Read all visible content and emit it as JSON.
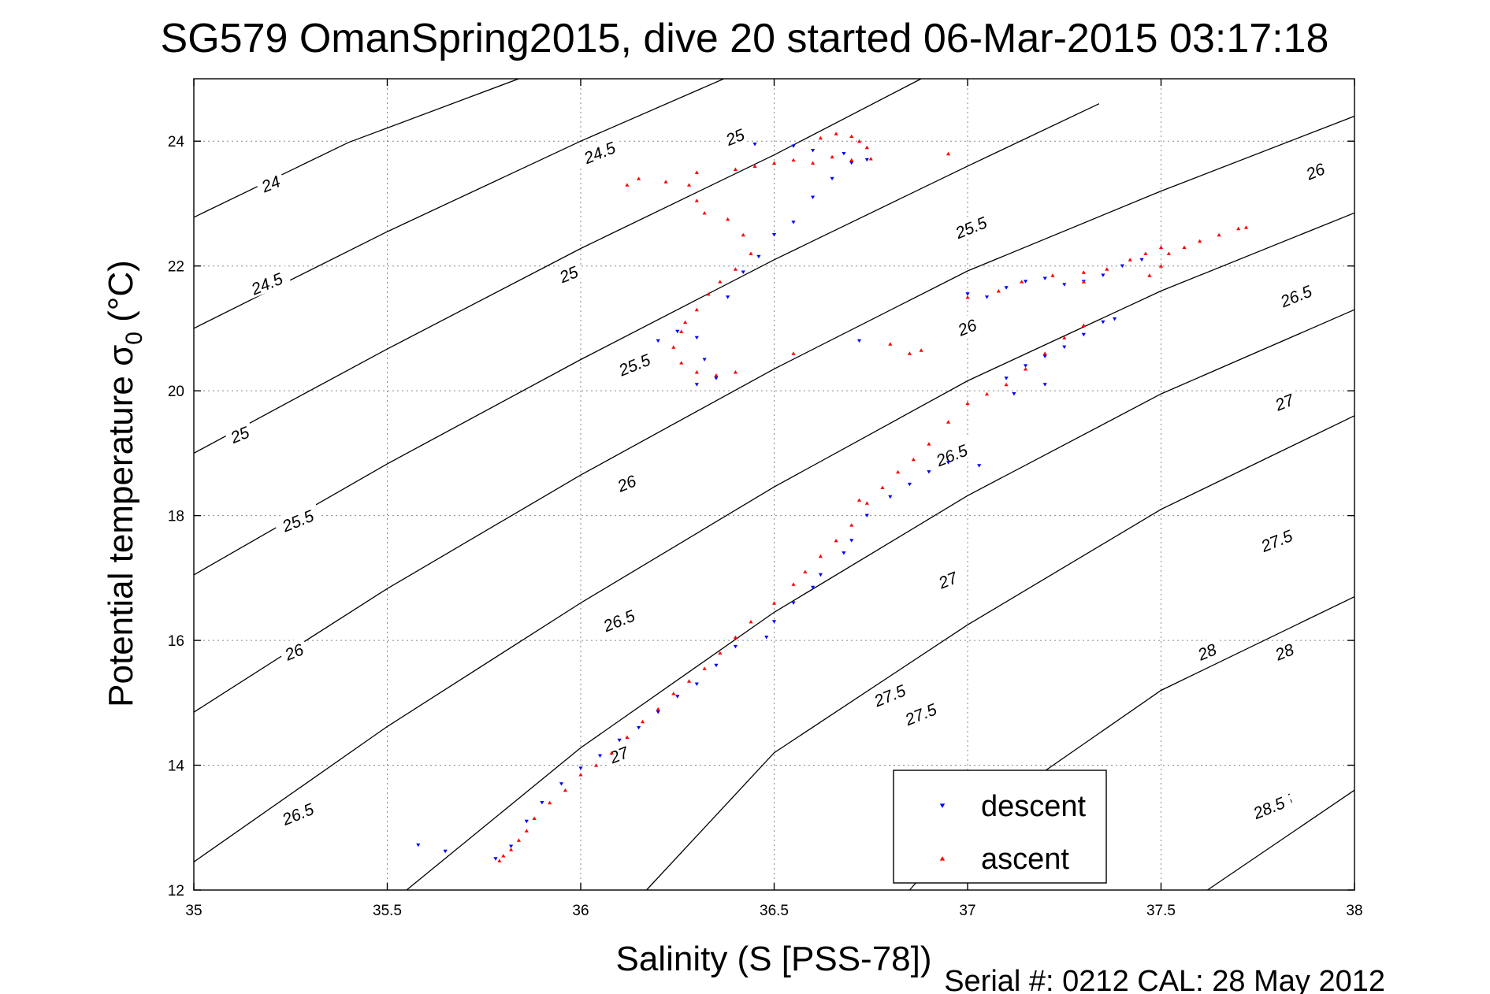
{
  "chart_data": {
    "type": "scatter",
    "title": "SG579 OmanSpring2015, dive 20 started 06-Mar-2015 03:17:18",
    "xlabel": "Salinity (S [PSS-78])",
    "ylabel": "Potential temperature σ",
    "ylabel_subscript": "0",
    "ylabel_unit": " (°C)",
    "footer": "Serial #: 0212  CAL: 28 May 2012",
    "xlim": [
      35,
      38
    ],
    "ylim": [
      12,
      25
    ],
    "xticks": [
      35,
      35.5,
      36,
      36.5,
      37,
      37.5,
      38
    ],
    "xtick_labels": [
      "35",
      "35.5",
      "36",
      "36.5",
      "37",
      "37.5",
      "38"
    ],
    "yticks": [
      12,
      14,
      16,
      18,
      20,
      22,
      24
    ],
    "ytick_labels": [
      "12",
      "14",
      "16",
      "18",
      "20",
      "22",
      "24"
    ],
    "grid": true,
    "legend_position": "bottom-right",
    "series": [
      {
        "name": "descent",
        "color": "#0000ff",
        "marker": "triangle-down",
        "points": [
          [
            35.58,
            12.72
          ],
          [
            35.65,
            12.62
          ],
          [
            35.78,
            12.5
          ],
          [
            35.82,
            12.7
          ],
          [
            35.86,
            13.1
          ],
          [
            35.9,
            13.4
          ],
          [
            35.95,
            13.7
          ],
          [
            36.0,
            13.95
          ],
          [
            36.05,
            14.15
          ],
          [
            36.1,
            14.4
          ],
          [
            36.15,
            14.6
          ],
          [
            36.2,
            14.85
          ],
          [
            36.25,
            15.1
          ],
          [
            36.3,
            15.3
          ],
          [
            36.35,
            15.6
          ],
          [
            36.4,
            15.9
          ],
          [
            36.48,
            16.05
          ],
          [
            36.5,
            16.3
          ],
          [
            36.55,
            16.6
          ],
          [
            36.6,
            16.85
          ],
          [
            36.62,
            17.05
          ],
          [
            36.68,
            17.4
          ],
          [
            36.7,
            17.6
          ],
          [
            36.74,
            18.0
          ],
          [
            36.8,
            18.3
          ],
          [
            36.85,
            18.5
          ],
          [
            36.9,
            18.7
          ],
          [
            36.95,
            18.85
          ],
          [
            37.03,
            18.8
          ],
          [
            36.2,
            20.8
          ],
          [
            36.25,
            20.95
          ],
          [
            36.3,
            20.85
          ],
          [
            36.32,
            20.5
          ],
          [
            36.35,
            20.2
          ],
          [
            36.3,
            20.1
          ],
          [
            36.38,
            21.5
          ],
          [
            36.42,
            21.9
          ],
          [
            36.46,
            22.15
          ],
          [
            36.5,
            22.5
          ],
          [
            36.55,
            22.7
          ],
          [
            36.6,
            23.1
          ],
          [
            36.65,
            23.4
          ],
          [
            36.7,
            23.65
          ],
          [
            36.74,
            23.7
          ],
          [
            36.68,
            23.8
          ],
          [
            36.55,
            23.92
          ],
          [
            36.45,
            23.95
          ],
          [
            36.6,
            23.85
          ],
          [
            37.0,
            21.55
          ],
          [
            37.05,
            21.5
          ],
          [
            37.1,
            21.65
          ],
          [
            37.15,
            21.75
          ],
          [
            37.2,
            21.8
          ],
          [
            37.25,
            21.7
          ],
          [
            37.3,
            21.75
          ],
          [
            37.35,
            21.85
          ],
          [
            37.4,
            22.0
          ],
          [
            37.45,
            22.1
          ],
          [
            37.1,
            20.2
          ],
          [
            37.15,
            20.4
          ],
          [
            37.2,
            20.55
          ],
          [
            37.25,
            20.7
          ],
          [
            37.3,
            20.9
          ],
          [
            37.35,
            21.1
          ],
          [
            37.38,
            21.15
          ],
          [
            37.2,
            20.1
          ],
          [
            37.12,
            19.95
          ],
          [
            36.72,
            20.8
          ]
        ]
      },
      {
        "name": "ascent",
        "color": "#ff0000",
        "marker": "triangle-up",
        "points": [
          [
            35.79,
            12.47
          ],
          [
            35.8,
            12.55
          ],
          [
            35.82,
            12.65
          ],
          [
            35.84,
            12.8
          ],
          [
            35.86,
            12.95
          ],
          [
            35.88,
            13.15
          ],
          [
            35.92,
            13.4
          ],
          [
            35.96,
            13.6
          ],
          [
            36.0,
            13.85
          ],
          [
            36.04,
            14.0
          ],
          [
            36.08,
            14.2
          ],
          [
            36.12,
            14.45
          ],
          [
            36.16,
            14.7
          ],
          [
            36.2,
            14.9
          ],
          [
            36.24,
            15.15
          ],
          [
            36.28,
            15.35
          ],
          [
            36.32,
            15.55
          ],
          [
            36.36,
            15.8
          ],
          [
            36.4,
            16.05
          ],
          [
            36.44,
            16.3
          ],
          [
            36.5,
            16.6
          ],
          [
            36.55,
            16.9
          ],
          [
            36.58,
            17.1
          ],
          [
            36.62,
            17.35
          ],
          [
            36.66,
            17.6
          ],
          [
            36.7,
            17.85
          ],
          [
            36.74,
            18.2
          ],
          [
            36.78,
            18.45
          ],
          [
            36.82,
            18.7
          ],
          [
            36.86,
            18.9
          ],
          [
            36.9,
            19.15
          ],
          [
            36.95,
            19.5
          ],
          [
            37.0,
            19.8
          ],
          [
            37.05,
            19.95
          ],
          [
            37.1,
            20.1
          ],
          [
            37.15,
            20.35
          ],
          [
            37.2,
            20.6
          ],
          [
            37.25,
            20.85
          ],
          [
            37.3,
            21.05
          ],
          [
            36.72,
            18.25
          ],
          [
            36.26,
            20.95
          ],
          [
            36.24,
            20.7
          ],
          [
            36.26,
            20.45
          ],
          [
            36.3,
            20.3
          ],
          [
            36.35,
            20.25
          ],
          [
            36.4,
            20.3
          ],
          [
            36.27,
            21.1
          ],
          [
            36.3,
            21.3
          ],
          [
            36.33,
            21.55
          ],
          [
            36.36,
            21.75
          ],
          [
            36.4,
            21.95
          ],
          [
            36.44,
            22.2
          ],
          [
            36.42,
            22.5
          ],
          [
            36.38,
            22.75
          ],
          [
            36.32,
            22.85
          ],
          [
            36.3,
            23.05
          ],
          [
            36.28,
            23.3
          ],
          [
            36.22,
            23.35
          ],
          [
            36.15,
            23.4
          ],
          [
            36.12,
            23.3
          ],
          [
            36.3,
            23.5
          ],
          [
            36.4,
            23.55
          ],
          [
            36.45,
            23.6
          ],
          [
            36.5,
            23.65
          ],
          [
            36.55,
            23.7
          ],
          [
            36.6,
            23.65
          ],
          [
            36.65,
            23.75
          ],
          [
            36.7,
            23.7
          ],
          [
            36.75,
            23.72
          ],
          [
            36.62,
            24.05
          ],
          [
            36.66,
            24.12
          ],
          [
            36.7,
            24.08
          ],
          [
            36.72,
            24.0
          ],
          [
            36.74,
            23.9
          ],
          [
            36.95,
            23.8
          ],
          [
            36.8,
            20.75
          ],
          [
            36.85,
            20.6
          ],
          [
            36.88,
            20.65
          ],
          [
            36.55,
            20.6
          ],
          [
            37.0,
            21.5
          ],
          [
            37.08,
            21.6
          ],
          [
            37.14,
            21.75
          ],
          [
            37.22,
            21.85
          ],
          [
            37.3,
            21.9
          ],
          [
            37.36,
            21.95
          ],
          [
            37.42,
            22.1
          ],
          [
            37.46,
            22.2
          ],
          [
            37.5,
            22.3
          ],
          [
            37.52,
            22.2
          ],
          [
            37.56,
            22.3
          ],
          [
            37.6,
            22.4
          ],
          [
            37.65,
            22.5
          ],
          [
            37.7,
            22.6
          ],
          [
            37.72,
            22.62
          ],
          [
            37.5,
            22.0
          ],
          [
            37.47,
            21.85
          ],
          [
            37.3,
            21.75
          ]
        ]
      }
    ],
    "contours": [
      {
        "label": "24",
        "points": [
          [
            35.0,
            22.78
          ],
          [
            35.4,
            23.98
          ],
          [
            35.84,
            25.0
          ]
        ],
        "label_at": [
          35.2,
          23.3
        ]
      },
      {
        "label": "24.5",
        "points": [
          [
            35.0,
            21.0
          ],
          [
            35.5,
            22.55
          ],
          [
            36.0,
            24.0
          ],
          [
            36.37,
            25.0
          ]
        ],
        "label_at": [
          35.19,
          21.7
        ]
      },
      {
        "label": "25",
        "points": [
          [
            35.0,
            19.0
          ],
          [
            35.5,
            20.67
          ],
          [
            36.0,
            22.28
          ],
          [
            36.5,
            23.78
          ],
          [
            36.88,
            25.0
          ]
        ],
        "label_at": [
          35.12,
          19.28
        ]
      },
      {
        "label": "25.5",
        "points": [
          [
            35.0,
            17.05
          ],
          [
            35.5,
            18.83
          ],
          [
            36.0,
            20.5
          ],
          [
            36.5,
            22.1
          ],
          [
            37.0,
            23.6
          ],
          [
            37.34,
            24.6
          ]
        ],
        "label_at": [
          35.27,
          17.9
        ]
      },
      {
        "label": "26",
        "points": [
          [
            35.0,
            14.85
          ],
          [
            35.5,
            16.83
          ],
          [
            36.0,
            18.65
          ],
          [
            36.5,
            20.35
          ],
          [
            37.0,
            21.92
          ],
          [
            37.5,
            23.2
          ],
          [
            38.0,
            24.4
          ]
        ],
        "label_at": [
          35.26,
          15.8
        ]
      },
      {
        "label": "26.5",
        "points": [
          [
            35.0,
            12.45
          ],
          [
            35.5,
            14.62
          ],
          [
            36.0,
            16.6
          ],
          [
            36.5,
            18.46
          ],
          [
            37.0,
            20.16
          ],
          [
            37.5,
            21.6
          ],
          [
            38.0,
            22.85
          ]
        ],
        "label_at": [
          35.27,
          13.2
        ]
      },
      {
        "label": "27",
        "points": [
          [
            35.55,
            12.0
          ],
          [
            36.0,
            14.28
          ],
          [
            36.5,
            16.45
          ],
          [
            37.0,
            18.32
          ],
          [
            37.5,
            19.95
          ],
          [
            38.0,
            21.3
          ]
        ],
        "label_at": [
          36.1,
          14.15
        ]
      },
      {
        "label": "27.5",
        "points": [
          [
            36.17,
            12.0
          ],
          [
            36.5,
            14.2
          ],
          [
            37.0,
            16.25
          ],
          [
            37.5,
            18.1
          ],
          [
            38.0,
            19.6
          ]
        ],
        "label_at": [
          36.8,
          15.1
        ]
      },
      {
        "label": "28",
        "points": [
          [
            36.85,
            12.0
          ],
          [
            37.0,
            13.05
          ],
          [
            37.5,
            15.2
          ],
          [
            38.0,
            16.7
          ]
        ],
        "label_at": [
          37.62,
          15.8
        ]
      },
      {
        "label": "28.5",
        "points": [
          [
            37.62,
            12.0
          ],
          [
            38.0,
            13.6
          ]
        ],
        "label_at": [
          37.8,
          13.35
        ]
      }
    ],
    "contour_labels": [
      {
        "label": "24.5",
        "at": [
          36.05,
          23.8
        ]
      },
      {
        "label": "25",
        "at": [
          36.4,
          24.05
        ]
      },
      {
        "label": "25",
        "at": [
          35.97,
          21.85
        ]
      },
      {
        "label": "25.5",
        "at": [
          37.01,
          22.6
        ]
      },
      {
        "label": "25.5",
        "at": [
          36.14,
          20.4
        ]
      },
      {
        "label": "26",
        "at": [
          37.9,
          23.5
        ]
      },
      {
        "label": "26",
        "at": [
          36.12,
          18.5
        ]
      },
      {
        "label": "26",
        "at": [
          37.0,
          21.0
        ]
      },
      {
        "label": "26.5",
        "at": [
          37.85,
          21.5
        ]
      },
      {
        "label": "26.5",
        "at": [
          36.1,
          16.3
        ]
      },
      {
        "label": "26.5",
        "at": [
          36.96,
          18.95
        ]
      },
      {
        "label": "27",
        "at": [
          37.82,
          19.8
        ]
      },
      {
        "label": "27",
        "at": [
          36.95,
          16.95
        ]
      },
      {
        "label": "27.5",
        "at": [
          37.8,
          17.58
        ]
      },
      {
        "label": "27.5",
        "at": [
          36.88,
          14.8
        ]
      },
      {
        "label": "28",
        "at": [
          37.82,
          15.8
        ]
      },
      {
        "label": "28.5",
        "at": [
          37.78,
          13.3
        ]
      }
    ]
  }
}
